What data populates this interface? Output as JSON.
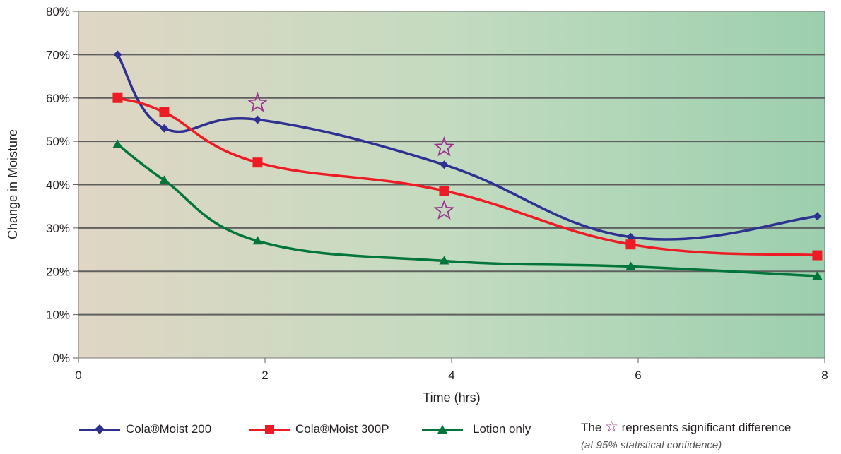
{
  "chart_data": {
    "type": "line",
    "xlabel": "Time (hrs)",
    "ylabel": "Change in Moisture",
    "xlim": [
      0,
      8
    ],
    "ylim": [
      0,
      80
    ],
    "x_ticks": [
      "0",
      "2",
      "4",
      "6",
      "8"
    ],
    "y_ticks": [
      "0%",
      "10%",
      "20%",
      "30%",
      "40%",
      "50%",
      "60%",
      "70%",
      "80%"
    ],
    "grid": "horizontal",
    "background": "horizontal gradient, tan to green",
    "series": [
      {
        "name": "Cola®Moist 200",
        "color": "#2e3192",
        "marker": "diamond",
        "x": [
          0.42,
          0.92,
          1.92,
          3.92,
          5.92,
          7.92
        ],
        "y": [
          70,
          53,
          55,
          44.6,
          27.9,
          32.7
        ]
      },
      {
        "name": "Cola®Moist 300P",
        "color": "#ed1c24",
        "marker": "square",
        "x": [
          0.42,
          0.92,
          1.92,
          3.92,
          5.92,
          7.92
        ],
        "y": [
          60,
          56.7,
          45.1,
          38.6,
          26.2,
          23.7
        ]
      },
      {
        "name": "Lotion only",
        "color": "#00763b",
        "marker": "triangle",
        "x": [
          0.42,
          0.92,
          1.92,
          3.92,
          5.92,
          7.92
        ],
        "y": [
          49.3,
          41,
          27,
          22.4,
          21.1,
          18.9
        ]
      }
    ],
    "annotations": [
      {
        "type": "star",
        "x": 1.92,
        "y": 58.8
      },
      {
        "type": "star",
        "x": 3.92,
        "y": 48.6
      },
      {
        "type": "star",
        "x": 3.92,
        "y": 34.0
      }
    ],
    "star_color": "#9b3192"
  },
  "legend": {
    "items": [
      {
        "label": "Cola®Moist 200",
        "color": "#2e3192",
        "marker": "diamond"
      },
      {
        "label": "Cola®Moist 300P",
        "color": "#ed1c24",
        "marker": "square"
      },
      {
        "label": "Lotion only",
        "color": "#00763b",
        "marker": "triangle"
      }
    ],
    "note_prefix": "The",
    "note_symbol": "☆",
    "note_text": "represents significant difference",
    "note_sub": "(at 95% statistical confidence)"
  }
}
